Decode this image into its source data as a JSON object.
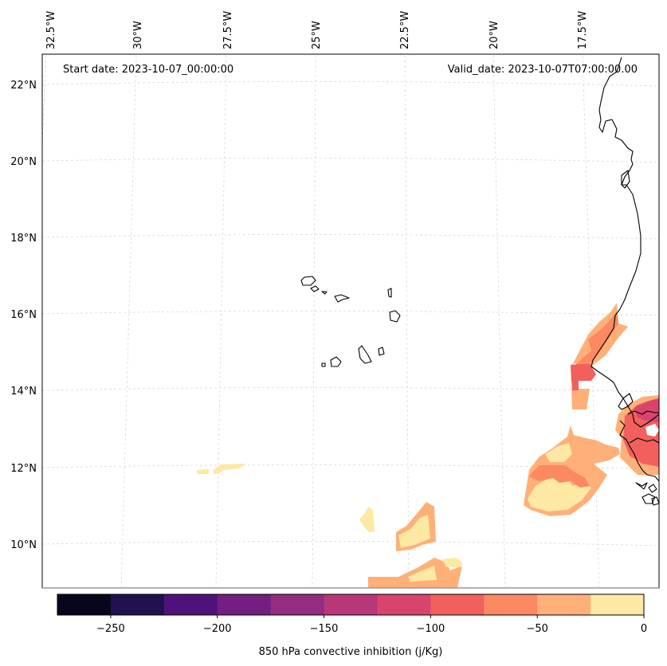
{
  "map": {
    "start_date_text": "Start date: 2023-10-07_00:00:00",
    "valid_date_text": "Valid_date: 2023-10-07T07:00:00.00",
    "lon_labels": [
      "32.5°W",
      "30°W",
      "27.5°W",
      "25°W",
      "22.5°W",
      "20°W",
      "17.5°W"
    ],
    "lat_labels": [
      "22°N",
      "20°N",
      "18°N",
      "16°N",
      "14°N",
      "12°N",
      "10°N"
    ],
    "gridlines": "dashed light gray",
    "features": [
      "Cape Verde islands",
      "West African coastline"
    ]
  },
  "colorbar": {
    "label": "850 hPa convective inhibition (j/Kg)",
    "ticks": [
      "−250",
      "−200",
      "−150",
      "−100",
      "−50",
      "0"
    ],
    "levels": [
      -275,
      -250,
      -225,
      -200,
      -175,
      -150,
      -125,
      -100,
      -75,
      -50,
      -25,
      0
    ],
    "colors": [
      "#07061d",
      "#221150",
      "#4f127b",
      "#721f81",
      "#942c80",
      "#b73779",
      "#d8456c",
      "#f1605d",
      "#fc8961",
      "#feb078",
      "#fde8a4"
    ]
  },
  "fill_classes": {
    "light": "#fde8a4",
    "peach": "#feb078",
    "orange": "#fc8961",
    "coral": "#f1605d",
    "red": "#d8456c"
  }
}
